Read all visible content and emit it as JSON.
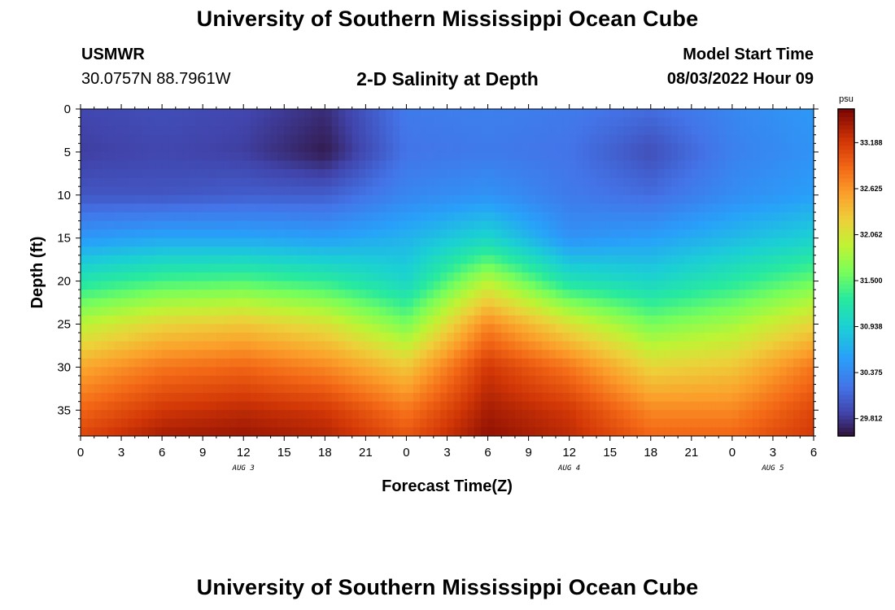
{
  "header": {
    "title": "University of Southern Mississippi Ocean Cube",
    "station": "USMWR",
    "coords": "30.0757N  88.7961W",
    "subtitle": "2-D Salinity at Depth",
    "model_start_label": "Model Start Time",
    "model_start_value": "08/03/2022 Hour 09",
    "footer_title": "University of Southern Mississippi Ocean Cube"
  },
  "chart_data": {
    "type": "heatmap",
    "title": "2-D Salinity at Depth",
    "xlabel": "Forecast Time(Z)",
    "ylabel": "Depth (ft)",
    "x_hours_range": [
      0,
      54
    ],
    "x_tick_labels": [
      "0",
      "3",
      "6",
      "9",
      "12",
      "15",
      "18",
      "21",
      "0",
      "3",
      "6",
      "9",
      "12",
      "15",
      "18",
      "21",
      "0",
      "3",
      "6"
    ],
    "x_date_labels": [
      {
        "label": "AUG 3",
        "at_hour": 12
      },
      {
        "label": "AUG 4",
        "at_hour": 36
      },
      {
        "label": "AUG 5",
        "at_hour": 51
      }
    ],
    "y_range": [
      0,
      38
    ],
    "y_ticks": [
      0,
      5,
      10,
      15,
      20,
      25,
      30,
      35
    ],
    "y_inverted": true,
    "colorbar": {
      "unit": "psu",
      "range": [
        29.6,
        33.6
      ],
      "ticks": [
        29.812,
        30.375,
        30.938,
        31.5,
        32.062,
        32.625,
        33.188
      ],
      "tick_labels": [
        "29.812",
        "30.375",
        "30.938",
        "31.500",
        "32.062",
        "32.625",
        "33.188"
      ],
      "colormap": "turbo"
    },
    "time_hours": [
      0,
      6,
      12,
      18,
      24,
      30,
      36,
      42,
      48,
      54
    ],
    "depth_ft": [
      0,
      5,
      10,
      15,
      20,
      25,
      30,
      35,
      38
    ],
    "salinity_psu": [
      [
        29.9,
        29.95,
        29.9,
        29.75,
        30.25,
        30.3,
        30.25,
        30.15,
        30.35,
        30.5
      ],
      [
        29.85,
        29.9,
        29.85,
        29.65,
        30.2,
        30.25,
        30.2,
        29.95,
        30.3,
        30.45
      ],
      [
        30.0,
        30.0,
        30.05,
        30.05,
        30.35,
        30.45,
        30.25,
        30.15,
        30.4,
        30.55
      ],
      [
        30.5,
        30.6,
        30.6,
        30.55,
        30.7,
        31.0,
        30.45,
        30.55,
        30.75,
        30.95
      ],
      [
        31.2,
        31.4,
        31.45,
        31.3,
        31.0,
        31.9,
        31.15,
        31.0,
        31.25,
        31.55
      ],
      [
        31.9,
        32.2,
        32.3,
        32.1,
        31.6,
        32.7,
        32.1,
        31.6,
        31.8,
        32.2
      ],
      [
        32.5,
        32.8,
        32.9,
        32.7,
        32.3,
        33.2,
        32.8,
        32.2,
        32.3,
        32.8
      ],
      [
        32.9,
        33.2,
        33.3,
        33.2,
        32.8,
        33.4,
        33.2,
        32.7,
        32.7,
        33.1
      ],
      [
        33.1,
        33.4,
        33.45,
        33.35,
        33.0,
        33.5,
        33.3,
        32.9,
        32.9,
        33.2
      ]
    ]
  }
}
